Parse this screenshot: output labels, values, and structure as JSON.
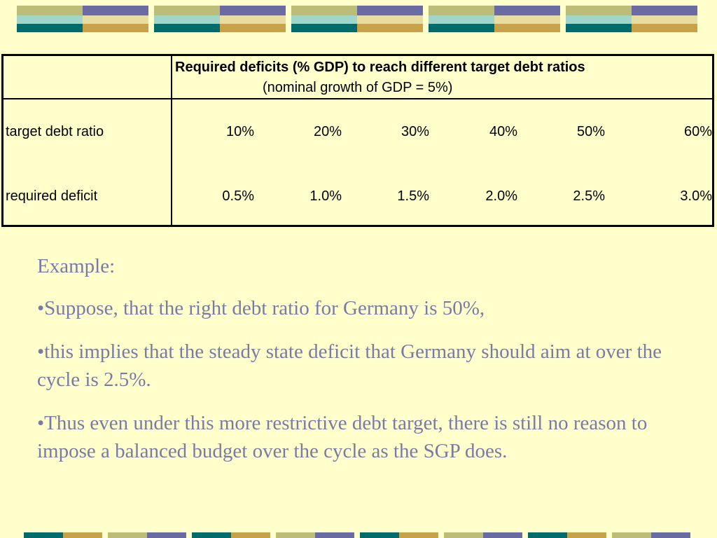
{
  "table": {
    "header_title": "Required deficits (% GDP) to reach different target debt ratios",
    "header_subtitle": "(nominal growth of GDP = 5%)",
    "rows": [
      {
        "label": "target debt ratio",
        "values": [
          "10%",
          "20%",
          "30%",
          "40%",
          "50%",
          "60%"
        ]
      },
      {
        "label": "required deficit",
        "values": [
          "0.5%",
          "1.0%",
          "1.5%",
          "2.0%",
          "2.5%",
          "3.0%"
        ]
      }
    ]
  },
  "body": {
    "paragraphs": [
      "Example:",
      "•Suppose, that the right debt ratio for Germany is 50%,",
      "•this implies that the steady state deficit that Germany should aim at over the cycle is 2.5%.",
      "•Thus even under this more restrictive debt target, there is still no reason to impose a balanced budget over the cycle as the SGP does."
    ]
  },
  "colors": {
    "background": "#FFFFCC",
    "text": "#7A7AA6",
    "deco_teal": "#006B6B",
    "deco_gold": "#C8A24A",
    "deco_purple": "#6B6BA3",
    "deco_olive": "#BDBD7A"
  }
}
